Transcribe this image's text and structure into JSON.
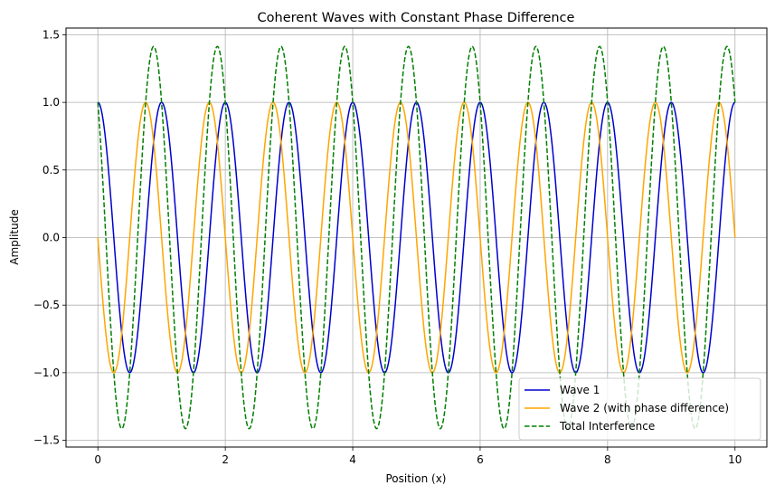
{
  "chart_data": {
    "type": "line",
    "title": "Coherent Waves with Constant Phase Difference",
    "xlabel": "Position (x)",
    "ylabel": "Amplitude",
    "xlim": [
      -0.5,
      10.5
    ],
    "ylim": [
      -1.55,
      1.55
    ],
    "xticks": [
      0,
      2,
      4,
      6,
      8,
      10
    ],
    "xtick_labels": [
      "0",
      "2",
      "4",
      "6",
      "8",
      "10"
    ],
    "yticks": [
      -1.5,
      -1.0,
      -0.5,
      0.0,
      0.5,
      1.0,
      1.5
    ],
    "ytick_labels": [
      "−1.5",
      "−1.0",
      "−0.5",
      "0.0",
      "0.5",
      "1.0",
      "1.5"
    ],
    "grid": true,
    "legend_position": "lower-right",
    "x_range": [
      0,
      10
    ],
    "series": [
      {
        "name": "Wave 1",
        "function": "cos(2*pi*x)",
        "color": "#0000cd",
        "style": "solid"
      },
      {
        "name": "Wave 2 (with phase difference)",
        "function": "cos(2*pi*x + pi/2)",
        "color": "#ffa500",
        "style": "solid"
      },
      {
        "name": "Total Interference",
        "function": "cos(2*pi*x) + cos(2*pi*x + pi/2)",
        "color": "#008000",
        "style": "dashed"
      }
    ]
  }
}
